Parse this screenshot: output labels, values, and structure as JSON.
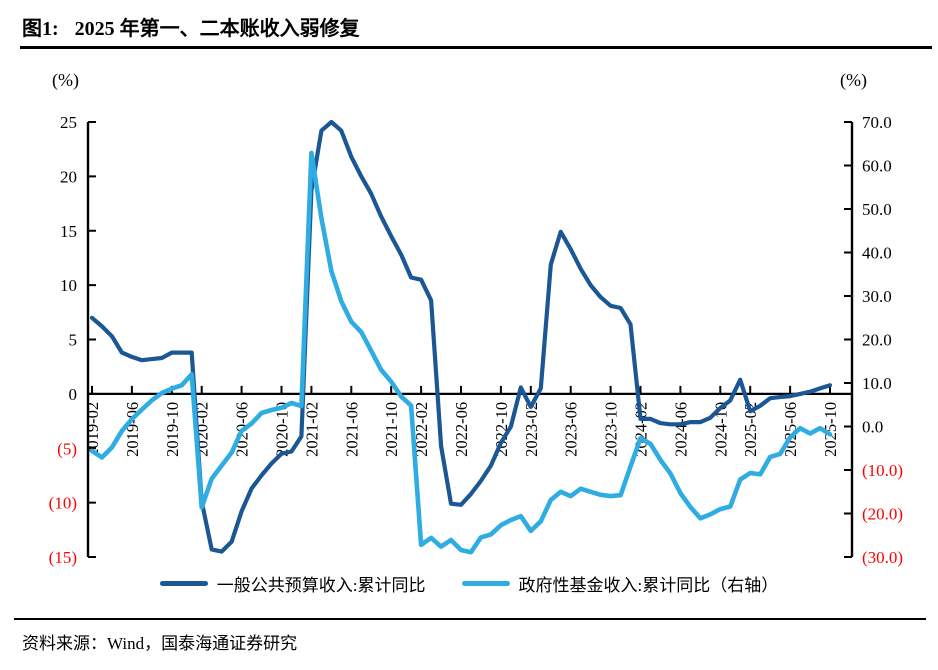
{
  "header": {
    "figure_label": "图1:",
    "title": "2025 年第一、二本账收入弱修复"
  },
  "footer": {
    "source": "资料来源：Wind，国泰海通证券研究"
  },
  "legend": {
    "items": [
      {
        "label": "一般公共预算收入:累计同比",
        "color": "#1B5795"
      },
      {
        "label": "政府性基金收入:累计同比（右轴）",
        "color": "#2FADE3"
      }
    ]
  },
  "chart_data": {
    "type": "line",
    "grid": false,
    "negative_label_color": "#FF0000",
    "left_axis": {
      "unit": "(%)",
      "max": 25,
      "min": -15,
      "tick_step": 5,
      "tick_labels": [
        "25",
        "20",
        "15",
        "10",
        "5",
        "0",
        "(5)",
        "(10)",
        "(15)"
      ]
    },
    "right_axis": {
      "unit": "(%)",
      "max": 70,
      "min": -30,
      "tick_step": 10,
      "tick_labels": [
        "70.0",
        "60.0",
        "50.0",
        "40.0",
        "30.0",
        "20.0",
        "10.0",
        "0.0",
        "(10.0)",
        "(20.0)",
        "(30.0)"
      ]
    },
    "x_tick_months": [
      "02",
      "06",
      "10"
    ],
    "x_tick_labels": [
      "2019-02",
      "2019-06",
      "2019-10",
      "2020-02",
      "2020-06",
      "2020-10",
      "2021-02",
      "2021-06",
      "2021-10",
      "2022-02",
      "2022-06",
      "2022-10",
      "2023-02",
      "2023-06",
      "2023-10",
      "2024-02",
      "2024-06",
      "2024-10",
      "2025-02",
      "2025-06",
      "2025-10"
    ],
    "categories": [
      "2019-02",
      "2019-03",
      "2019-04",
      "2019-05",
      "2019-06",
      "2019-07",
      "2019-08",
      "2019-09",
      "2019-10",
      "2019-11",
      "2019-12",
      "2020-02",
      "2020-03",
      "2020-04",
      "2020-05",
      "2020-06",
      "2020-07",
      "2020-08",
      "2020-09",
      "2020-10",
      "2020-11",
      "2020-12",
      "2021-02",
      "2021-03",
      "2021-04",
      "2021-05",
      "2021-06",
      "2021-07",
      "2021-08",
      "2021-09",
      "2021-10",
      "2021-11",
      "2021-12",
      "2022-02",
      "2022-03",
      "2022-04",
      "2022-05",
      "2022-06",
      "2022-07",
      "2022-08",
      "2022-09",
      "2022-10",
      "2022-11",
      "2022-12",
      "2023-02",
      "2023-03",
      "2023-04",
      "2023-05",
      "2023-06",
      "2023-07",
      "2023-08",
      "2023-09",
      "2023-10",
      "2023-11",
      "2023-12",
      "2024-02",
      "2024-03",
      "2024-04",
      "2024-05",
      "2024-06",
      "2024-07",
      "2024-08",
      "2024-09",
      "2024-10",
      "2024-11",
      "2024-12",
      "2025-02",
      "2025-03",
      "2025-04",
      "2025-05",
      "2025-06",
      "2025-07",
      "2025-08",
      "2025-09",
      "2025-10"
    ],
    "series": [
      {
        "name": "一般公共预算收入:累计同比",
        "axis": "left",
        "color": "#1B5795",
        "values": [
          7.0,
          6.2,
          5.3,
          3.8,
          3.4,
          3.1,
          3.2,
          3.3,
          3.8,
          3.8,
          3.8,
          -9.9,
          -14.3,
          -14.5,
          -13.6,
          -10.8,
          -8.7,
          -7.5,
          -6.4,
          -5.5,
          -5.3,
          -3.9,
          18.7,
          24.2,
          25.5,
          24.2,
          21.8,
          20.0,
          18.4,
          16.3,
          14.5,
          12.8,
          10.7,
          10.5,
          8.6,
          -4.8,
          -10.1,
          -10.2,
          -9.2,
          -8.0,
          -6.6,
          -4.5,
          -3.0,
          0.6,
          -1.2,
          0.5,
          11.9,
          14.9,
          13.3,
          11.5,
          10.0,
          8.9,
          8.1,
          7.9,
          6.4,
          -2.3,
          -2.3,
          -2.7,
          -2.8,
          -2.8,
          -2.6,
          -2.6,
          -2.2,
          -1.3,
          -0.6,
          1.3,
          -1.6,
          -1.1,
          -0.4,
          -0.3,
          -0.2,
          0.0,
          0.2,
          0.5,
          0.8
        ]
      },
      {
        "name": "政府性基金收入:累计同比（右轴）",
        "axis": "right",
        "color": "#2FADE3",
        "values": [
          -5.6,
          -7.1,
          -4.8,
          -1.0,
          1.7,
          3.9,
          6.0,
          7.7,
          8.7,
          9.5,
          12.0,
          -18.6,
          -12.0,
          -9.0,
          -6.0,
          -1.0,
          0.7,
          3.1,
          3.8,
          4.3,
          5.4,
          4.7,
          62.9,
          47.9,
          35.7,
          28.8,
          24.1,
          21.7,
          17.4,
          13.0,
          10.3,
          6.9,
          4.8,
          -27.2,
          -25.6,
          -27.6,
          -26.1,
          -28.4,
          -28.9,
          -25.5,
          -24.8,
          -22.7,
          -21.5,
          -20.6,
          -24.0,
          -21.8,
          -16.9,
          -15.0,
          -16.0,
          -14.3,
          -15.0,
          -15.7,
          -16.0,
          -15.8,
          -9.2,
          -2.7,
          -4.0,
          -7.7,
          -10.8,
          -15.3,
          -18.5,
          -21.1,
          -20.2,
          -19.0,
          -18.4,
          -12.2,
          -10.7,
          -11.0,
          -7.0,
          -6.3,
          -2.5,
          -0.4,
          -1.6,
          -0.4,
          -1.8
        ]
      }
    ]
  }
}
